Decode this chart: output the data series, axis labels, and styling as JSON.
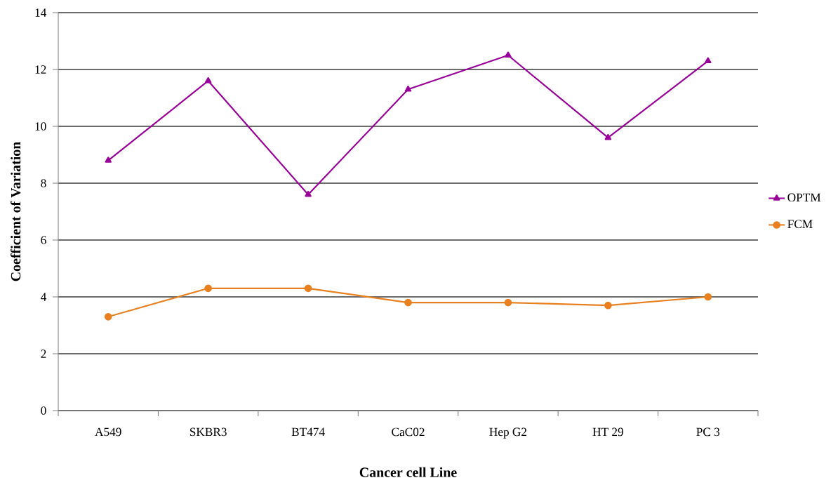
{
  "chart_data": {
    "type": "line",
    "xlabel": "Cancer cell Line",
    "ylabel": "Coefficient of Variation",
    "categories": [
      "A549",
      "SKBR3",
      "BT474",
      "CaC02",
      "Hep G2",
      "HT 29",
      "PC 3"
    ],
    "series": [
      {
        "name": "OPTM",
        "color": "#990099",
        "marker": "triangle",
        "values": [
          8.8,
          11.6,
          7.6,
          11.3,
          12.5,
          9.6,
          12.3
        ]
      },
      {
        "name": "FCM",
        "color": "#e8801f",
        "marker": "circle",
        "values": [
          3.3,
          4.3,
          4.3,
          3.8,
          3.8,
          3.7,
          4.0
        ]
      }
    ],
    "ylim": [
      0,
      14
    ],
    "yticks": [
      0,
      2,
      4,
      6,
      8,
      10,
      12,
      14
    ],
    "grid": "y",
    "legend": "right",
    "line_style": "solid"
  }
}
